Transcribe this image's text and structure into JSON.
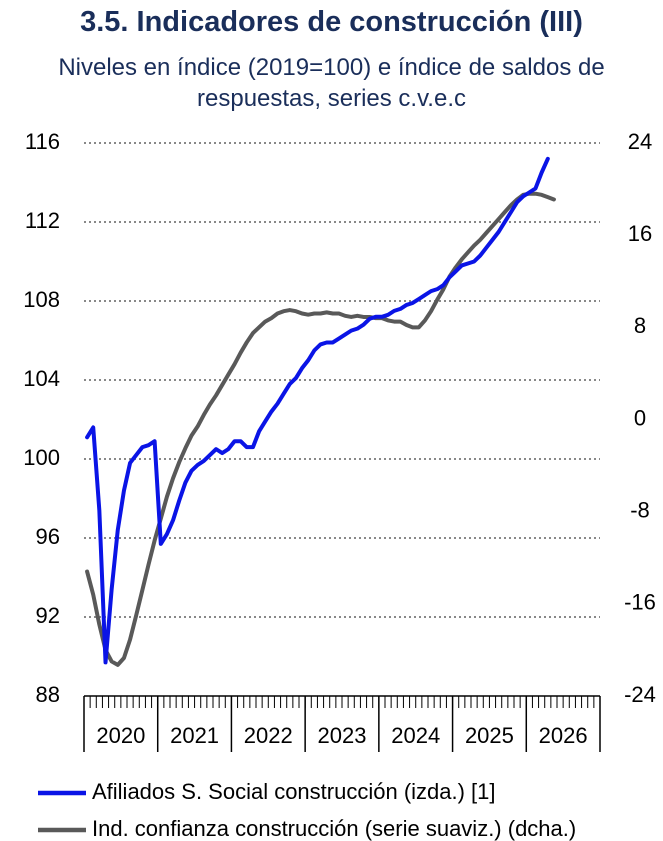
{
  "chart_data": {
    "type": "line",
    "title": "3.5. Indicadores de construcción (III)",
    "subtitle": "Niveles en índice (2019=100) e índice de saldos de respuestas, series c.v.e.c",
    "categories": [
      "2020",
      "2021",
      "2022",
      "2023",
      "2024",
      "2025",
      "2026"
    ],
    "xlim": [
      2020,
      2027
    ],
    "xticks": [
      2020,
      2021,
      2022,
      2023,
      2024,
      2025,
      2026,
      2027
    ],
    "ylim": [
      88,
      116
    ],
    "yticks": [
      88,
      92,
      96,
      100,
      104,
      108,
      112,
      116
    ],
    "y2lim": [
      -24,
      24
    ],
    "y2ticks": [
      -24,
      -16,
      -8,
      0,
      8,
      16,
      24
    ],
    "grid": true,
    "legend": "bottom",
    "x": [
      2020.042,
      2020.125,
      2020.208,
      2020.292,
      2020.375,
      2020.458,
      2020.542,
      2020.625,
      2020.708,
      2020.792,
      2020.875,
      2020.958,
      2021.042,
      2021.125,
      2021.208,
      2021.292,
      2021.375,
      2021.458,
      2021.542,
      2021.625,
      2021.708,
      2021.792,
      2021.875,
      2021.958,
      2022.042,
      2022.125,
      2022.208,
      2022.292,
      2022.375,
      2022.458,
      2022.542,
      2022.625,
      2022.708,
      2022.792,
      2022.875,
      2022.958,
      2023.042,
      2023.125,
      2023.208,
      2023.292,
      2023.375,
      2023.458,
      2023.542,
      2023.625,
      2023.708,
      2023.792,
      2023.875,
      2023.958,
      2024.042,
      2024.125,
      2024.208,
      2024.292,
      2024.375,
      2024.458,
      2024.542,
      2024.625,
      2024.708,
      2024.792,
      2024.875,
      2024.958,
      2025.042,
      2025.125,
      2025.208,
      2025.292,
      2025.375,
      2025.458,
      2025.542,
      2025.625,
      2025.708,
      2025.792,
      2025.875,
      2025.958,
      2026.042,
      2026.125,
      2026.208,
      2026.292,
      2026.375
    ],
    "series": [
      {
        "name": "Afiliados S. Social construcción (izda.) [1]",
        "color": "#0a14e6",
        "axis": "y",
        "values": [
          101.1,
          101.6,
          97.4,
          89.7,
          93.4,
          96.4,
          98.4,
          99.8,
          100.2,
          100.6,
          100.7,
          100.9,
          95.7,
          96.2,
          96.9,
          97.9,
          98.8,
          99.4,
          99.7,
          99.9,
          100.2,
          100.5,
          100.3,
          100.5,
          100.9,
          100.9,
          100.6,
          100.6,
          101.4,
          101.9,
          102.4,
          102.8,
          103.3,
          103.8,
          104.1,
          104.6,
          105.0,
          105.5,
          105.8,
          105.9,
          105.9,
          106.1,
          106.3,
          106.5,
          106.6,
          106.8,
          107.1,
          107.2,
          107.2,
          107.3,
          107.5,
          107.6,
          107.8,
          107.9,
          108.1,
          108.3,
          108.5,
          108.6,
          108.8,
          109.2,
          109.5,
          109.8,
          109.9,
          110.0,
          110.3,
          110.7,
          111.1,
          111.5,
          112.0,
          112.5,
          113.0,
          113.3,
          113.5,
          113.7,
          114.5,
          115.2,
          null
        ]
      },
      {
        "name": "Ind. confianza construcción (serie suaviz.) (dcha.)",
        "color": "#595959",
        "axis": "y2",
        "values": [
          -13.2,
          -15.2,
          -17.8,
          -20.0,
          -21.0,
          -21.3,
          -20.7,
          -19.1,
          -17.0,
          -14.8,
          -12.6,
          -10.5,
          -8.6,
          -6.7,
          -5.1,
          -3.7,
          -2.5,
          -1.4,
          -0.6,
          0.4,
          1.3,
          2.1,
          3.0,
          3.9,
          4.8,
          5.8,
          6.7,
          7.5,
          8.0,
          8.5,
          8.8,
          9.2,
          9.4,
          9.5,
          9.4,
          9.2,
          9.1,
          9.2,
          9.2,
          9.3,
          9.2,
          9.2,
          9.0,
          8.9,
          9.0,
          8.9,
          8.9,
          8.8,
          8.8,
          8.6,
          8.5,
          8.5,
          8.2,
          8.0,
          8.0,
          8.6,
          9.4,
          10.4,
          11.3,
          12.4,
          13.2,
          13.9,
          14.5,
          15.1,
          15.6,
          16.2,
          16.8,
          17.4,
          18.0,
          18.6,
          19.1,
          19.5,
          19.6,
          19.6,
          19.5,
          19.3,
          19.1
        ]
      }
    ]
  }
}
